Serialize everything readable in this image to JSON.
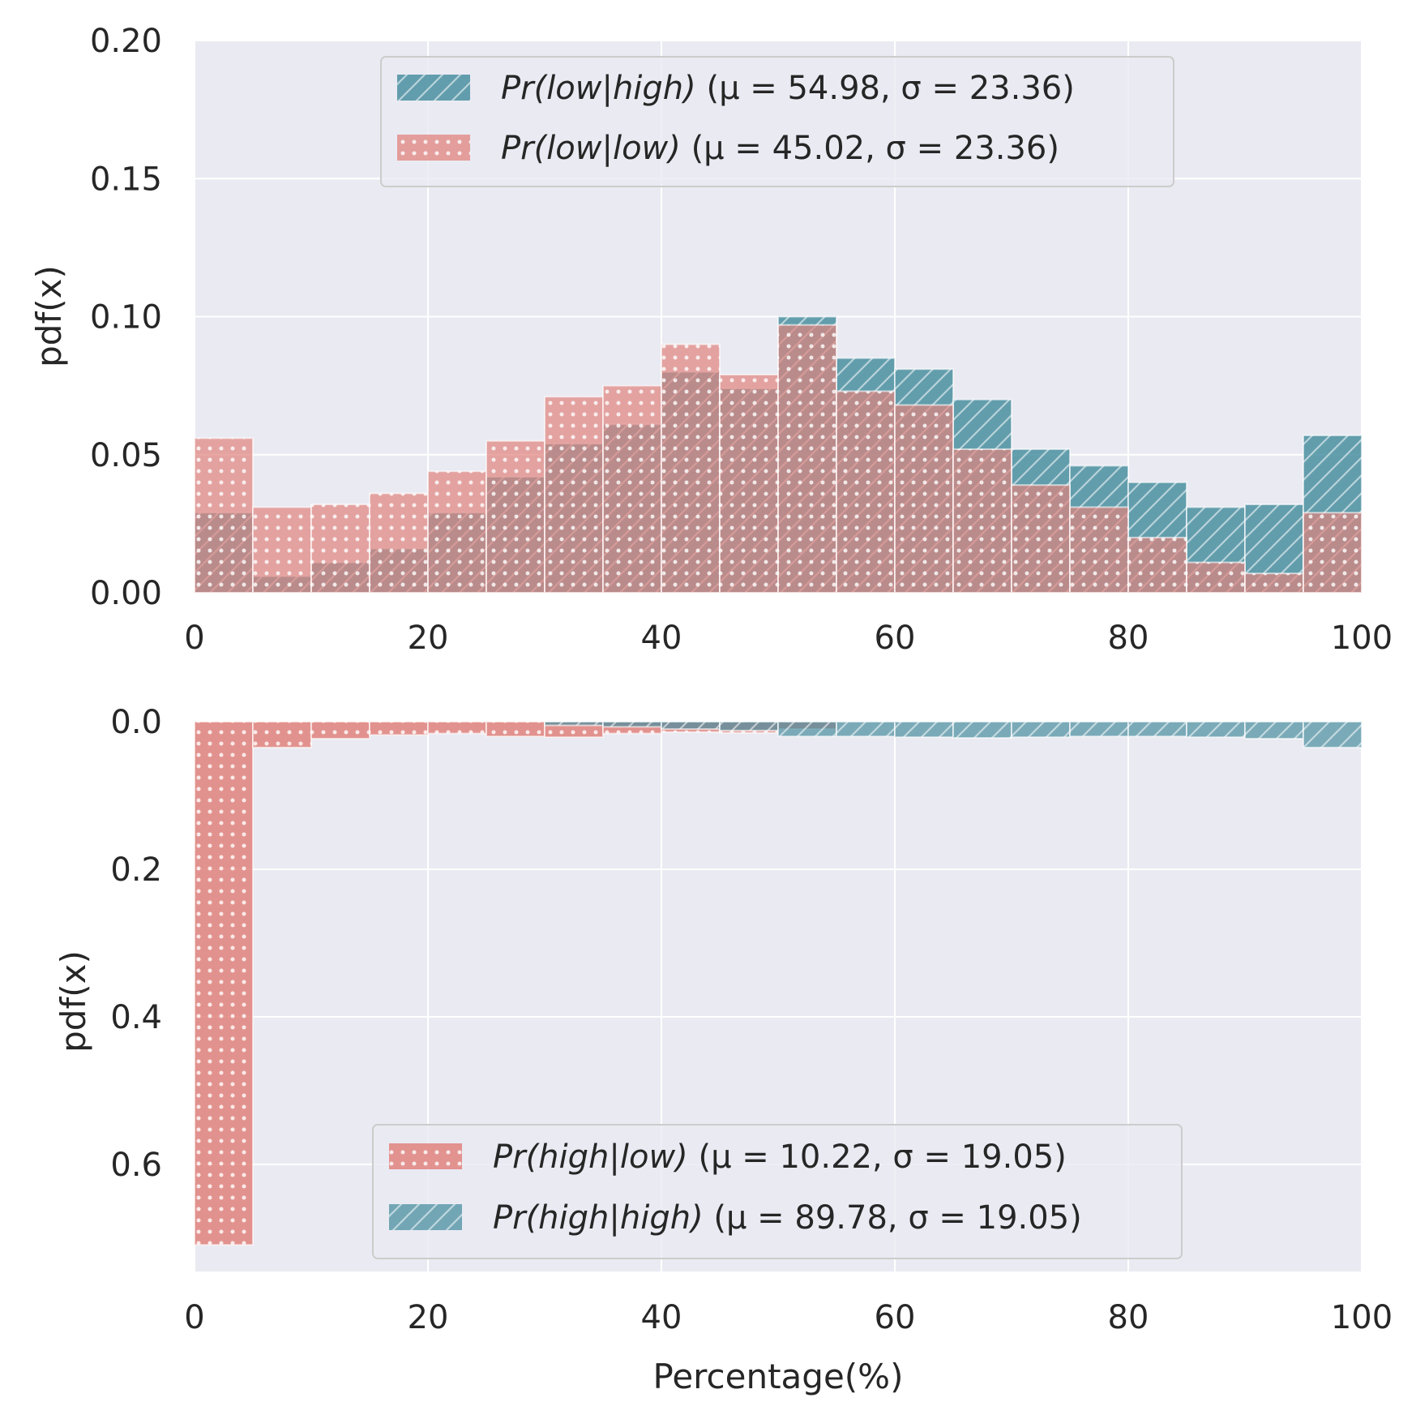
{
  "colors": {
    "teal": "#4a8fa0",
    "salmon": "#e0837d",
    "axes_bg": "#eaeaf2",
    "grid": "#ffffff"
  },
  "chart_data": [
    {
      "type": "bar",
      "title": "",
      "xlabel": "",
      "ylabel": "pdf(x)",
      "xlim": [
        0,
        100
      ],
      "ylim": [
        0,
        0.2
      ],
      "y_inverted": false,
      "bin_edges": [
        0,
        5,
        10,
        15,
        20,
        25,
        30,
        35,
        40,
        45,
        50,
        55,
        60,
        65,
        70,
        75,
        80,
        85,
        90,
        95,
        100
      ],
      "xticks": [
        "0",
        "20",
        "40",
        "60",
        "80",
        "100"
      ],
      "yticks": [
        "0.00",
        "0.05",
        "0.10",
        "0.15",
        "0.20"
      ],
      "grid": true,
      "legend_position": "top-center",
      "series": [
        {
          "name": "Pr(low|high)",
          "legend_rest": "(μ = 54.98, σ = 23.36)",
          "mu": 54.98,
          "sigma": 23.36,
          "color_key": "teal",
          "pattern": "hatch",
          "values": [
            0.029,
            0.006,
            0.011,
            0.016,
            0.029,
            0.042,
            0.054,
            0.061,
            0.08,
            0.074,
            0.1,
            0.085,
            0.081,
            0.07,
            0.052,
            0.046,
            0.04,
            0.031,
            0.032,
            0.057
          ]
        },
        {
          "name": "Pr(low|low)",
          "legend_rest": "(μ = 45.02, σ = 23.36)",
          "mu": 45.02,
          "sigma": 23.36,
          "color_key": "salmon",
          "pattern": "dots",
          "values": [
            0.056,
            0.031,
            0.032,
            0.036,
            0.044,
            0.055,
            0.071,
            0.075,
            0.09,
            0.079,
            0.097,
            0.073,
            0.068,
            0.052,
            0.039,
            0.031,
            0.02,
            0.011,
            0.007,
            0.029
          ]
        }
      ]
    },
    {
      "type": "bar",
      "title": "",
      "xlabel": "Percentage(%)",
      "ylabel": "pdf(x)",
      "xlim": [
        0,
        100
      ],
      "ylim": [
        0,
        0.745
      ],
      "y_inverted": true,
      "bin_edges": [
        0,
        5,
        10,
        15,
        20,
        25,
        30,
        35,
        40,
        45,
        50,
        55,
        60,
        65,
        70,
        75,
        80,
        85,
        90,
        95,
        100
      ],
      "xticks": [
        "0",
        "20",
        "40",
        "60",
        "80",
        "100"
      ],
      "yticks": [
        "0.0",
        "0.2",
        "0.4",
        "0.6"
      ],
      "grid": true,
      "legend_position": "bottom-center",
      "series": [
        {
          "name": "Pr(high|low)",
          "legend_rest": "(μ = 10.22, σ = 19.05)",
          "mu": 10.22,
          "sigma": 19.05,
          "color_key": "salmon",
          "pattern": "dots",
          "values": [
            0.709,
            0.035,
            0.023,
            0.018,
            0.016,
            0.02,
            0.021,
            0.016,
            0.014,
            0.015,
            0.01,
            0.0,
            0.0,
            0.0,
            0.0,
            0.0,
            0.0,
            0.0,
            0.0,
            0.0
          ]
        },
        {
          "name": "Pr(high|high)",
          "legend_rest": "(μ = 89.78, σ = 19.05)",
          "mu": 89.78,
          "sigma": 19.05,
          "color_key": "teal",
          "pattern": "hatch",
          "values": [
            0.0,
            0.0,
            0.0,
            0.0,
            0.0,
            0.0,
            0.005,
            0.007,
            0.01,
            0.012,
            0.02,
            0.02,
            0.021,
            0.022,
            0.021,
            0.02,
            0.02,
            0.021,
            0.023,
            0.035
          ]
        }
      ]
    }
  ]
}
